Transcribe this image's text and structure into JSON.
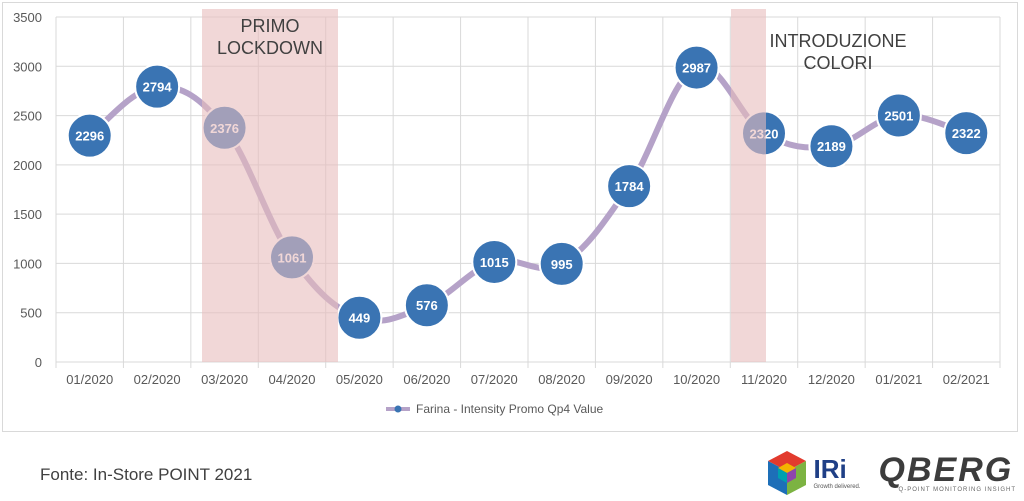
{
  "chart_data": {
    "type": "line",
    "categories": [
      "01/2020",
      "02/2020",
      "03/2020",
      "04/2020",
      "05/2020",
      "06/2020",
      "07/2020",
      "08/2020",
      "09/2020",
      "10/2020",
      "11/2020",
      "12/2020",
      "01/2021",
      "02/2021"
    ],
    "series": [
      {
        "name": "Farina - Intensity Promo Qp4 Value",
        "values": [
          2296,
          2794,
          2376,
          1061,
          449,
          576,
          1015,
          995,
          1784,
          2987,
          2320,
          2189,
          2501,
          2322
        ]
      }
    ],
    "ylim": [
      0,
      3500
    ],
    "yticks": [
      0,
      500,
      1000,
      1500,
      2000,
      2500,
      3000,
      3500
    ],
    "grid": true,
    "legend_position": "bottom",
    "annotations": [
      {
        "label": "PRIMO LOCKDOWN",
        "from_category": "03/2020",
        "to_category": "04/2020"
      },
      {
        "label": "INTRODUZIONE COLORI",
        "from_category": "11/2020",
        "to_category": "11/2020"
      }
    ],
    "colors": {
      "line": "#b5a2c8",
      "marker": "#3a74b3",
      "band": "#e8bcbc",
      "label": "#ffffff"
    }
  },
  "source_text": "Fonte: In-Store POINT 2021",
  "logos": {
    "iri_name": "IRi",
    "iri_tagline": "Growth delivered.",
    "qberg_name": "QBERG",
    "qberg_tagline": "Q-POINT MONITORING INSIGHT"
  }
}
